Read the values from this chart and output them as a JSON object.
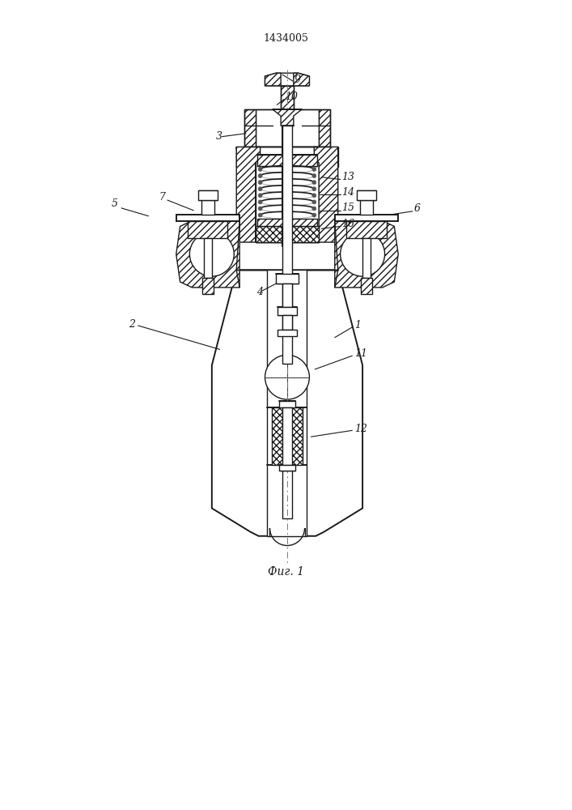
{
  "title": "1434005",
  "fig_label": "Фиг. 1",
  "bg_color": "#ffffff",
  "line_color": "#1a1a1a"
}
